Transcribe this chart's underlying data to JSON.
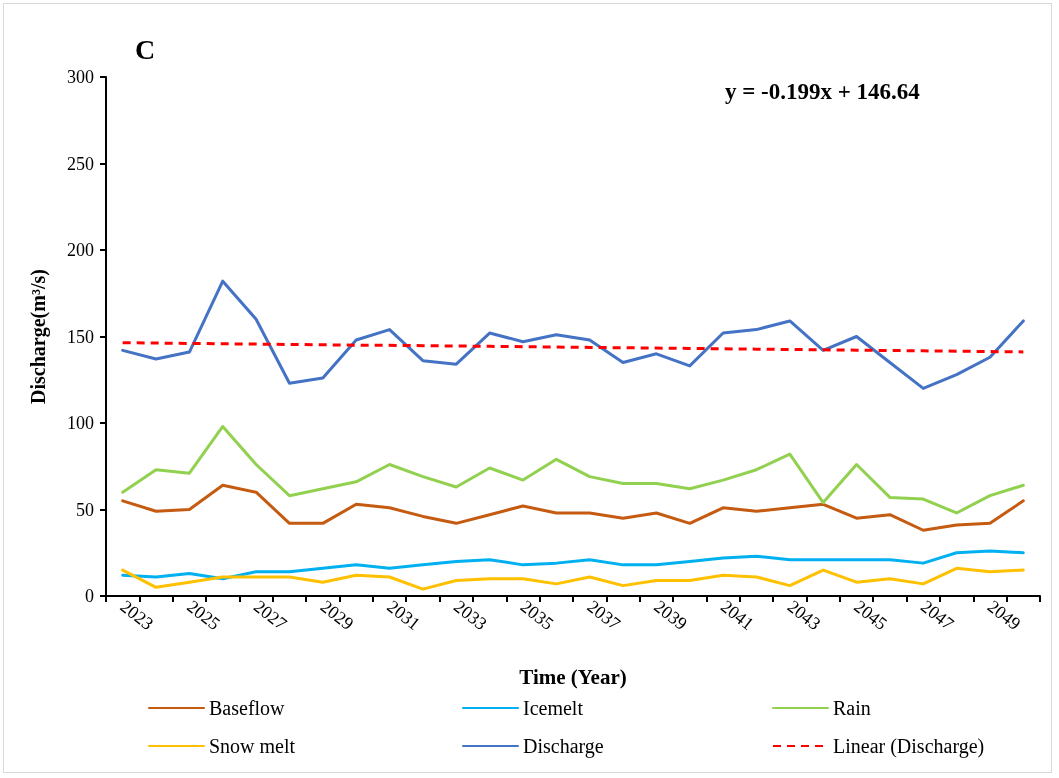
{
  "chart_data": {
    "type": "line",
    "title": "C",
    "xlabel": "Time (Year)",
    "ylabel": "Discharge(m³/s)",
    "annotations": [
      "y = -0.199x + 146.64"
    ],
    "categories": [
      "2023",
      null,
      "2025",
      null,
      "2027",
      null,
      "2029",
      null,
      "2031",
      null,
      "2033",
      null,
      "2035",
      null,
      "2037",
      null,
      "2039",
      null,
      "2041",
      null,
      "2043",
      null,
      "2045",
      null,
      "2047",
      null,
      "2049",
      null
    ],
    "series": [
      {
        "name": "Baseflow",
        "color": "#c55a11",
        "values": [
          55,
          49,
          50,
          64,
          60,
          42,
          42,
          53,
          51,
          46,
          42,
          47,
          52,
          48,
          48,
          45,
          48,
          42,
          51,
          49,
          51,
          53,
          45,
          47,
          38,
          41,
          42,
          55
        ]
      },
      {
        "name": "Icemelt",
        "color": "#00b0f0",
        "values": [
          12,
          11,
          13,
          10,
          14,
          14,
          16,
          18,
          16,
          18,
          20,
          21,
          18,
          19,
          21,
          18,
          18,
          20,
          22,
          23,
          21,
          21,
          21,
          21,
          19,
          25,
          26,
          25
        ]
      },
      {
        "name": "Rain",
        "color": "#92d050",
        "values": [
          60,
          73,
          71,
          98,
          76,
          58,
          62,
          66,
          76,
          69,
          63,
          74,
          67,
          79,
          69,
          65,
          65,
          62,
          67,
          73,
          82,
          54,
          76,
          57,
          56,
          48,
          58,
          64
        ]
      },
      {
        "name": "Snow melt",
        "color": "#ffc000",
        "values": [
          15,
          5,
          8,
          11,
          11,
          11,
          8,
          12,
          11,
          4,
          9,
          10,
          10,
          7,
          11,
          6,
          9,
          9,
          12,
          11,
          6,
          15,
          8,
          10,
          7,
          16,
          14,
          15
        ]
      },
      {
        "name": "Discharge",
        "color": "#4472c4",
        "values": [
          142,
          137,
          141,
          182,
          160,
          123,
          126,
          148,
          154,
          136,
          134,
          152,
          147,
          151,
          148,
          135,
          140,
          133,
          152,
          154,
          159,
          142,
          150,
          135,
          120,
          128,
          138,
          159
        ]
      },
      {
        "name": "Linear (Discharge)",
        "color": "#ff0000",
        "line_style": "dashed",
        "values": [
          146.4,
          146.2,
          146.0,
          145.8,
          145.6,
          145.4,
          145.2,
          145.0,
          144.9,
          144.7,
          144.5,
          144.3,
          144.1,
          143.9,
          143.7,
          143.5,
          143.3,
          143.1,
          142.9,
          142.7,
          142.5,
          142.3,
          142.1,
          141.9,
          141.7,
          141.5,
          141.3,
          141.1
        ]
      }
    ],
    "ylim": [
      0,
      300
    ],
    "yticks": [
      0,
      50,
      100,
      150,
      200,
      250,
      300
    ],
    "legend": "bottom",
    "marker": "none",
    "line_style": "solid"
  }
}
